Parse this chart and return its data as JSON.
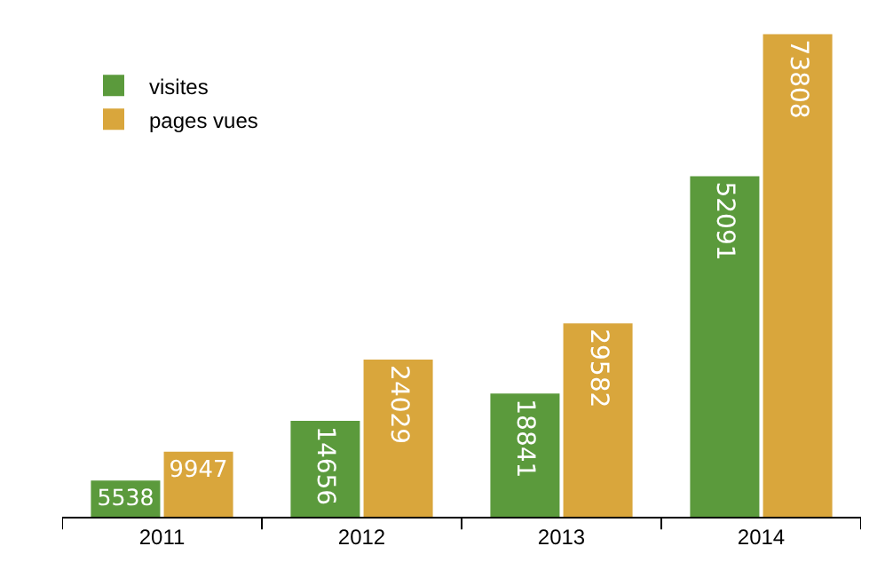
{
  "chart_data": {
    "type": "bar",
    "categories": [
      "2011",
      "2012",
      "2013",
      "2014"
    ],
    "series": [
      {
        "name": "visites",
        "color": "#5b9a3c",
        "values": [
          5538,
          14656,
          18841,
          52091
        ]
      },
      {
        "name": "pages vues",
        "color": "#d9a63c",
        "values": [
          9947,
          24029,
          29582,
          73808
        ]
      }
    ],
    "data_labels": true,
    "legend": "top left",
    "grid": false
  }
}
